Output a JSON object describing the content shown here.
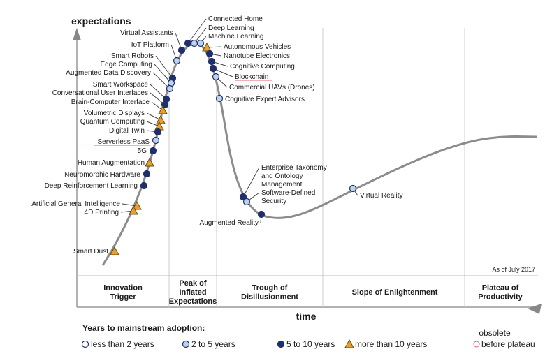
{
  "axis": {
    "y_label": "expectations",
    "x_label": "time",
    "as_of": "As of July 2017"
  },
  "phases": [
    {
      "lines": [
        "Innovation",
        "Trigger"
      ]
    },
    {
      "lines": [
        "Peak of",
        "Inflated",
        "Expectations"
      ]
    },
    {
      "lines": [
        "Trough of",
        "Disillusionment"
      ]
    },
    {
      "lines": [
        "Slope of Enlightenment"
      ]
    },
    {
      "lines": [
        "Plateau of",
        "Productivity"
      ]
    }
  ],
  "legend": {
    "title": "Years to mainstream adoption:",
    "items": [
      "less than 2 years",
      "2 to 5 years",
      "5 to 10 years",
      "more than 10 years"
    ],
    "obsolete_1": "obsolete",
    "obsolete_2": "before plateau"
  },
  "colors": {
    "lt2": "#ffffff",
    "y2to5": "#bcd3ea",
    "y5to10": "#1f2f6e",
    "gt10": "#e8a02a",
    "curve": "#8c8c8c",
    "obsolete": "#e06070"
  },
  "technologies": [
    {
      "name": "Connected Home",
      "adoption": "5 to 10 years"
    },
    {
      "name": "Deep Learning",
      "adoption": "2 to 5 years"
    },
    {
      "name": "Machine Learning",
      "adoption": "2 to 5 years"
    },
    {
      "name": "Autonomous Vehicles",
      "adoption": "more than 10 years"
    },
    {
      "name": "Nanotube Electronics",
      "adoption": "5 to 10 years"
    },
    {
      "name": "Cognitive Computing",
      "adoption": "5 to 10 years"
    },
    {
      "name": "Blockchain",
      "adoption": "5 to 10 years"
    },
    {
      "name": "Commercial UAVs (Drones)",
      "adoption": "2 to 5 years"
    },
    {
      "name": "Cognitive Expert Advisors",
      "adoption": "2 to 5 years"
    },
    {
      "name": "Virtual Assistants",
      "adoption": "5 to 10 years"
    },
    {
      "name": "IoT Platform",
      "adoption": "2 to 5 years"
    },
    {
      "name": "Smart Robots",
      "adoption": "5 to 10 years"
    },
    {
      "name": "Edge Computing",
      "adoption": "2 to 5 years"
    },
    {
      "name": "Augmented Data Discovery",
      "adoption": "2 to 5 years"
    },
    {
      "name": "Smart Workspace",
      "adoption": "5 to 10 years"
    },
    {
      "name": "Conversational User Interfaces",
      "adoption": "5 to 10 years"
    },
    {
      "name": "Brain-Computer Interface",
      "adoption": "more than 10 years"
    },
    {
      "name": "Volumetric Displays",
      "adoption": "more than 10 years"
    },
    {
      "name": "Quantum Computing",
      "adoption": "more than 10 years"
    },
    {
      "name": "Digital Twin",
      "adoption": "5 to 10 years"
    },
    {
      "name": "Serverless PaaS",
      "adoption": "2 to 5 years"
    },
    {
      "name": "5G",
      "adoption": "5 to 10 years"
    },
    {
      "name": "Human Augmentation",
      "adoption": "more than 10 years"
    },
    {
      "name": "Neuromorphic Hardware",
      "adoption": "5 to 10 years"
    },
    {
      "name": "Deep Reinforcement Learning",
      "adoption": "5 to 10 years"
    },
    {
      "name": "Artificial General Intelligence",
      "adoption": "more than 10 years"
    },
    {
      "name": "4D Printing",
      "adoption": "more than 10 years"
    },
    {
      "name": "Smart Dust",
      "adoption": "more than 10 years"
    },
    {
      "name": "Enterprise Taxonomy and Ontology Management",
      "lines": [
        "Enterprise Taxonomy",
        "and Ontology",
        "Management"
      ],
      "adoption": "5 to 10 years"
    },
    {
      "name": "Software-Defined Security",
      "lines": [
        "Software-Defined",
        "Security"
      ],
      "adoption": "2 to 5 years"
    },
    {
      "name": "Augmented Reality",
      "adoption": "5 to 10 years"
    },
    {
      "name": "Virtual Reality",
      "adoption": "2 to 5 years"
    }
  ]
}
